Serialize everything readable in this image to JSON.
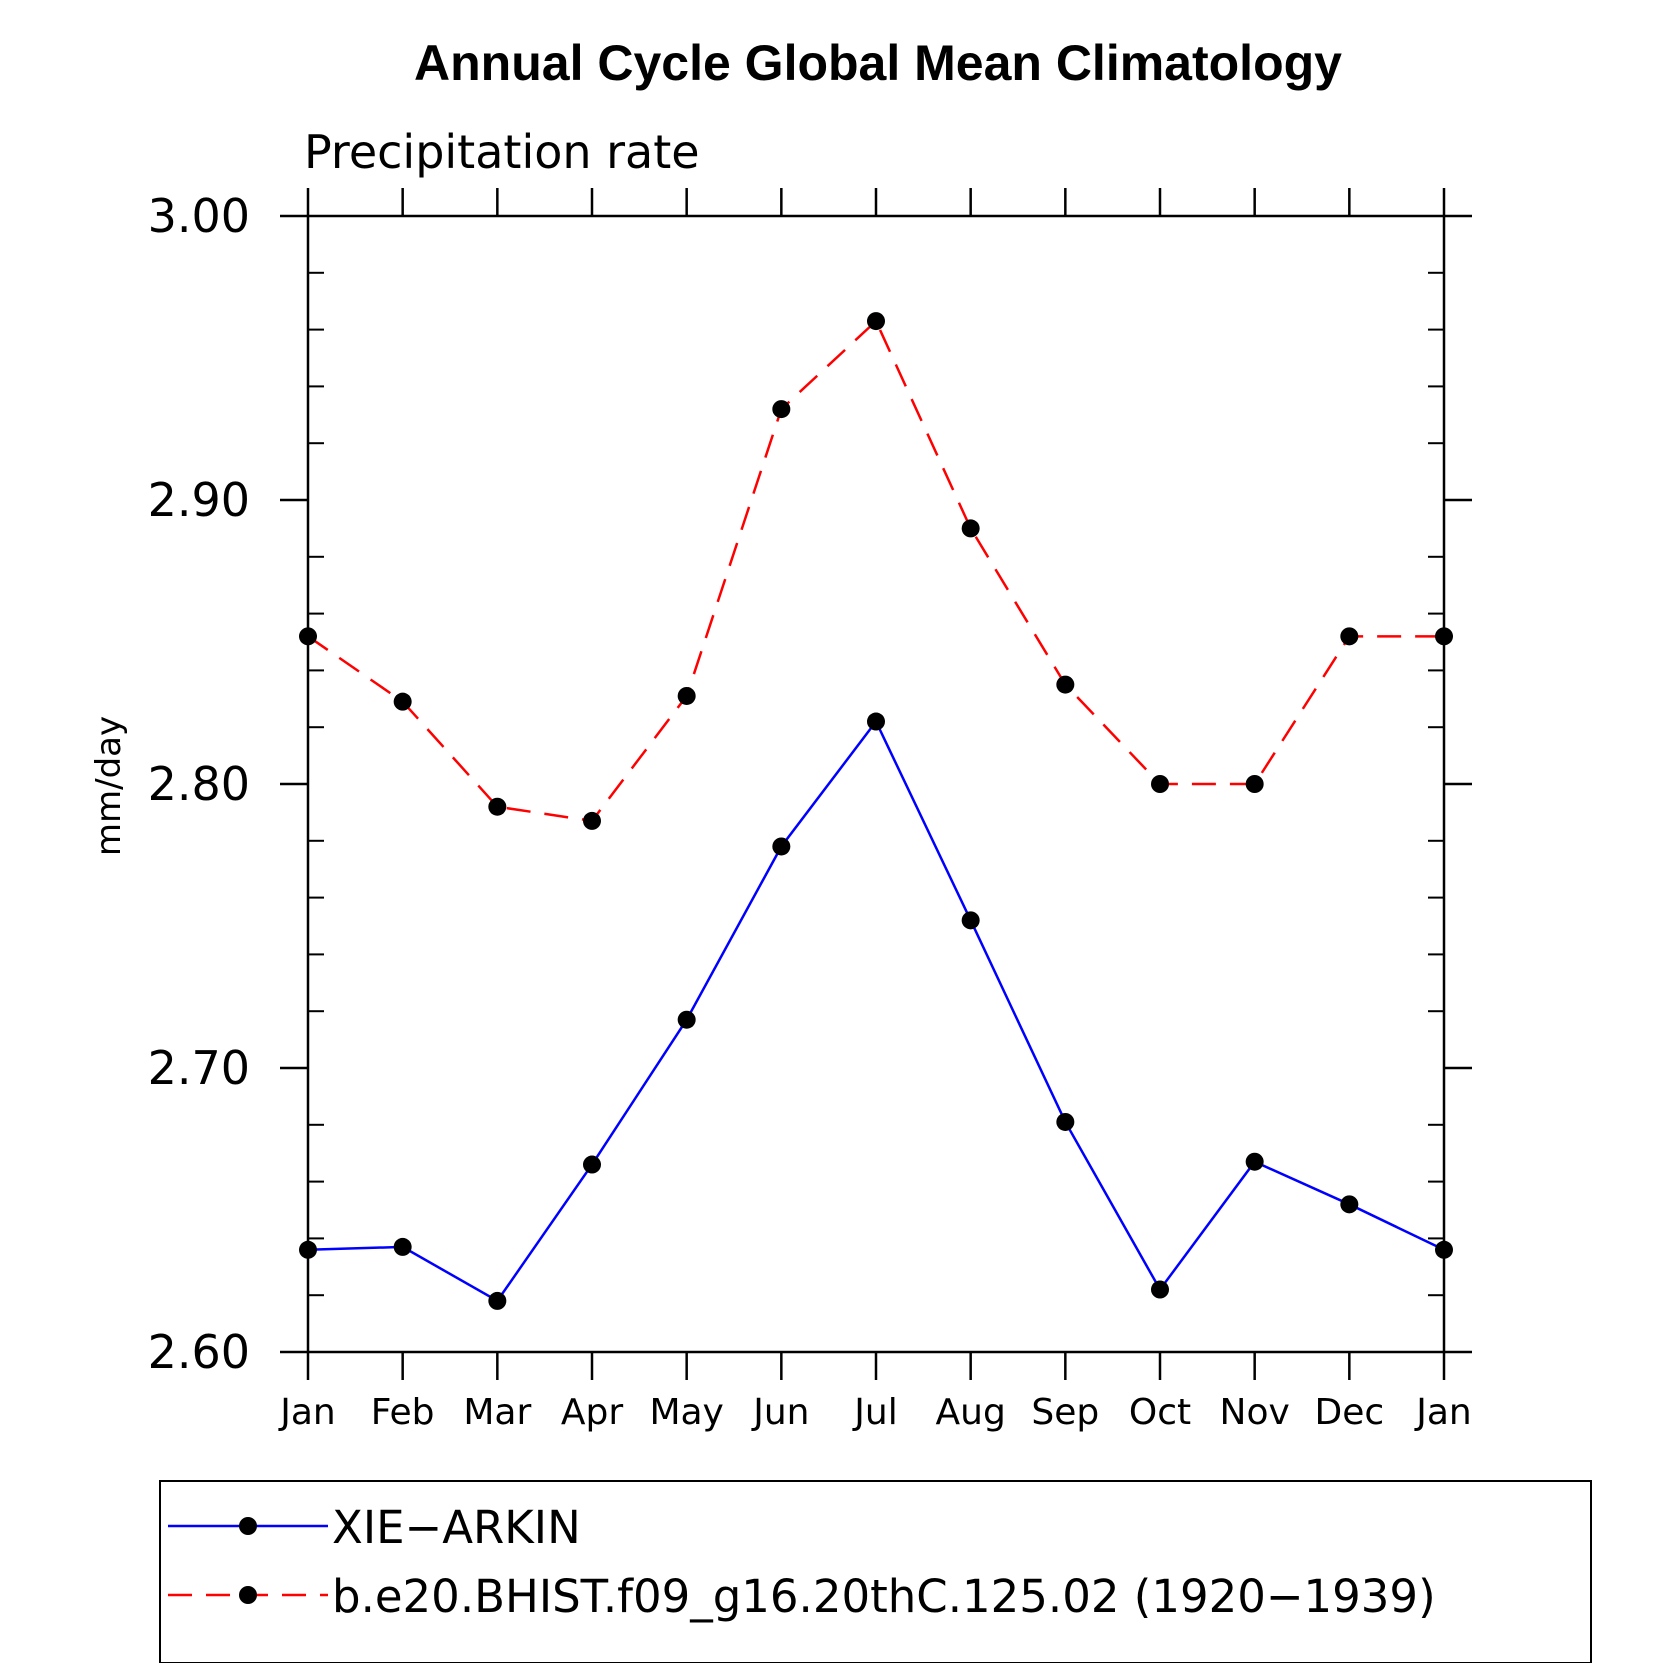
{
  "chart_data": {
    "type": "line",
    "title": "Annual Cycle Global Mean Climatology",
    "subtitle": "Precipitation rate",
    "xlabel": "",
    "ylabel": "mm/day",
    "categories": [
      "Jan",
      "Feb",
      "Mar",
      "Apr",
      "May",
      "Jun",
      "Jul",
      "Aug",
      "Sep",
      "Oct",
      "Nov",
      "Dec",
      "Jan"
    ],
    "ylim": [
      2.6,
      3.0
    ],
    "yticks": [
      "2.60",
      "2.70",
      "2.80",
      "2.90",
      "3.00"
    ],
    "yminor_step": 0.02,
    "grid": false,
    "legend_position": "bottom",
    "series": [
      {
        "name": "XIE−ARKIN",
        "color": "#0000ff",
        "line_style": "solid",
        "marker": "filled-circle",
        "values": [
          2.636,
          2.637,
          2.618,
          2.666,
          2.717,
          2.778,
          2.822,
          2.752,
          2.681,
          2.622,
          2.667,
          2.652,
          2.636
        ]
      },
      {
        "name": "b.e20.BHIST.f09_g16.20thC.125.02 (1920−1939)",
        "color": "#ff0000",
        "line_style": "dashed",
        "marker": "filled-circle",
        "values": [
          2.852,
          2.829,
          2.792,
          2.787,
          2.831,
          2.932,
          2.963,
          2.89,
          2.835,
          2.8,
          2.8,
          2.852,
          2.852
        ]
      }
    ]
  }
}
